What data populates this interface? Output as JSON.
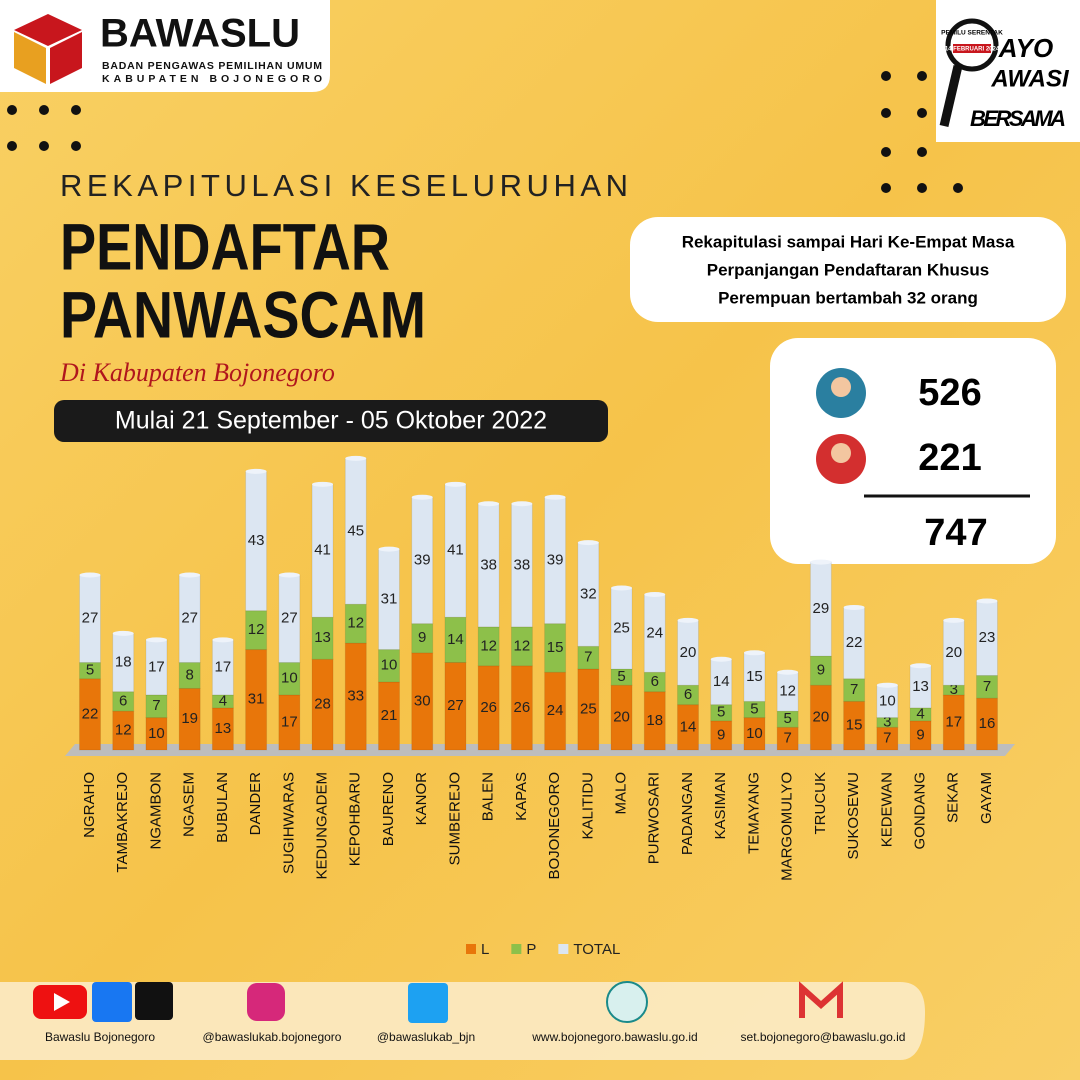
{
  "header": {
    "brand": "BAWASLU",
    "brand_sub1": "BADAN PENGAWAS PEMILIHAN UMUM",
    "brand_sub2": "KABUPATEN BOJONEGORO",
    "badge_line1": "PEMILU SERENTAK",
    "badge_line2": "14 FEBRUARI 2024",
    "badge_ayo": "AYO",
    "badge_awasi": "AWASI",
    "badge_bersama": "BERSAMA",
    "pretitle": "REKAPITULASI KESELURUHAN",
    "title1": "PENDAFTAR",
    "title2": "PANWASCAM",
    "subtitle": "Di Kabupaten Bojonegoro",
    "period": "Mulai 21 September - 05 Oktober 2022"
  },
  "note": {
    "line1": "Rekapitulasi sampai Hari Ke-Empat Masa",
    "line2": "Perpanjangan Pendaftaran Khusus",
    "line3": "Perempuan bertambah 32 orang"
  },
  "summary": {
    "male": 526,
    "female": 221,
    "total": 747
  },
  "chart_data": {
    "type": "stacked-bar",
    "categories": [
      "NGRAHO",
      "TAMBAKREJO",
      "NGAMBON",
      "NGASEM",
      "BUBULAN",
      "DANDER",
      "SUGIHWARAS",
      "KEDUNGADEM",
      "KEPOHBARU",
      "BAURENO",
      "KANOR",
      "SUMBEREJO",
      "BALEN",
      "KAPAS",
      "BOJONEGORO",
      "KALITIDU",
      "MALO",
      "PURWOSARI",
      "PADANGAN",
      "KASIMAN",
      "TEMAYANG",
      "MARGOMULYO",
      "TRUCUK",
      "SUKOSEWU",
      "KEDEWAN",
      "GONDANG",
      "SEKAR",
      "GAYAM"
    ],
    "series": [
      {
        "name": "L",
        "color": "#e8760a",
        "values": [
          22,
          12,
          10,
          19,
          13,
          31,
          17,
          28,
          33,
          21,
          30,
          27,
          26,
          26,
          24,
          25,
          20,
          18,
          14,
          9,
          10,
          7,
          20,
          15,
          7,
          9,
          17,
          16
        ]
      },
      {
        "name": "P",
        "color": "#8dc04a",
        "values": [
          5,
          6,
          7,
          8,
          4,
          12,
          10,
          13,
          12,
          10,
          9,
          14,
          12,
          12,
          15,
          7,
          5,
          6,
          6,
          5,
          5,
          5,
          9,
          7,
          3,
          4,
          3,
          7
        ]
      },
      {
        "name": "TOTAL",
        "color": "#dce6f2",
        "values": [
          27,
          18,
          17,
          27,
          17,
          43,
          27,
          41,
          45,
          31,
          39,
          41,
          38,
          38,
          39,
          32,
          25,
          24,
          20,
          14,
          15,
          12,
          29,
          22,
          10,
          13,
          20,
          23
        ]
      }
    ]
  },
  "footer": {
    "youtube_fb_tiktok": "Bawaslu Bojonegoro",
    "instagram": "@bawaslukab.bojonegoro",
    "twitter": "@bawaslukab_bjn",
    "web": "www.bojonegoro.bawaslu.go.id",
    "email": "set.bojonegoro@bawaslu.go.id"
  }
}
